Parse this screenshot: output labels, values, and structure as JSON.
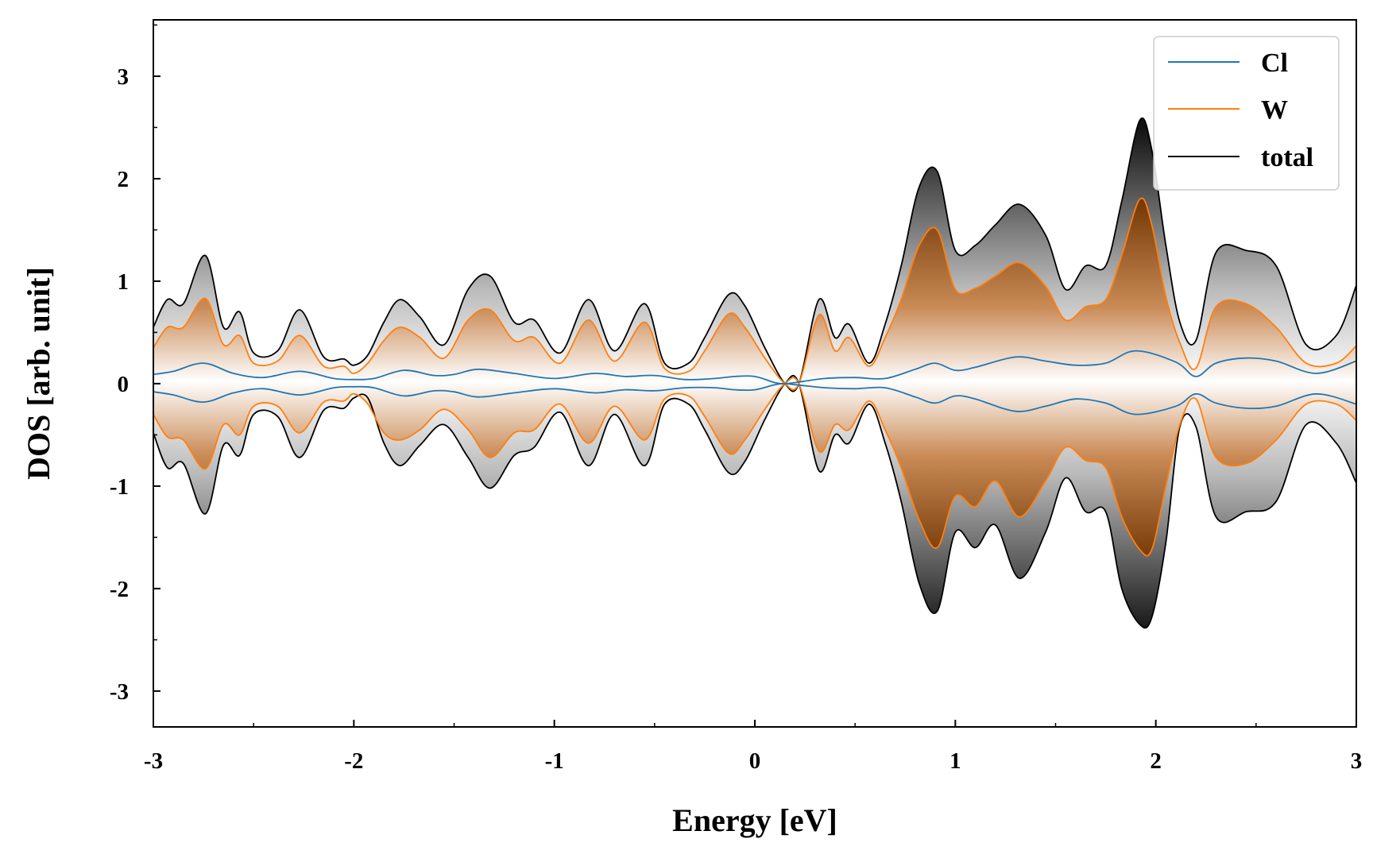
{
  "chart_data": {
    "type": "line",
    "title": "",
    "xlabel": "Energy [eV]",
    "ylabel": "DOS [arb. unit]",
    "xlim": [
      -3,
      3
    ],
    "ylim": [
      -3.35,
      3.55
    ],
    "xticks": [
      -3,
      -2,
      -1,
      0,
      1,
      2,
      3
    ],
    "yticks": [
      -3,
      -2,
      -1,
      0,
      1,
      2,
      3
    ],
    "xtick_labels": [
      "-3",
      "-2",
      "-1",
      "0",
      "1",
      "2",
      "3"
    ],
    "ytick_labels": [
      "-3",
      "-2",
      "-1",
      "0",
      "1",
      "2",
      "3"
    ],
    "grid": false,
    "legend_position": "top-right",
    "legend": [
      "Cl",
      "W",
      "total"
    ],
    "fill": "vertical gradient under the total and W curves, darkest at the largest magnitude",
    "series": [
      {
        "name": "Cl",
        "color": "#1f77b4",
        "x": [
          -3.0,
          -2.9,
          -2.75,
          -2.6,
          -2.45,
          -2.27,
          -2.1,
          -2.0,
          -1.9,
          -1.75,
          -1.6,
          -1.5,
          -1.38,
          -1.2,
          -1.0,
          -0.8,
          -0.65,
          -0.5,
          -0.35,
          -0.2,
          -0.1,
          0.0,
          0.1,
          0.15,
          0.2,
          0.35,
          0.5,
          0.65,
          0.8,
          0.9,
          1.0,
          1.1,
          1.3,
          1.45,
          1.6,
          1.75,
          1.9,
          2.1,
          2.2,
          2.3,
          2.45,
          2.6,
          2.8,
          3.0
        ],
        "upper": [
          0.09,
          0.12,
          0.2,
          0.1,
          0.06,
          0.12,
          0.05,
          0.04,
          0.05,
          0.13,
          0.08,
          0.09,
          0.14,
          0.1,
          0.05,
          0.1,
          0.07,
          0.08,
          0.04,
          0.05,
          0.07,
          0.07,
          0.01,
          0.0,
          0.01,
          0.05,
          0.06,
          0.05,
          0.14,
          0.2,
          0.13,
          0.16,
          0.26,
          0.22,
          0.18,
          0.2,
          0.32,
          0.21,
          0.07,
          0.2,
          0.25,
          0.22,
          0.1,
          0.22
        ],
        "lower": [
          -0.08,
          -0.11,
          -0.18,
          -0.09,
          -0.05,
          -0.11,
          -0.04,
          -0.03,
          -0.04,
          -0.12,
          -0.07,
          -0.08,
          -0.13,
          -0.09,
          -0.05,
          -0.09,
          -0.06,
          -0.07,
          -0.04,
          -0.04,
          -0.06,
          -0.06,
          -0.01,
          0.0,
          -0.01,
          -0.04,
          -0.05,
          -0.04,
          -0.13,
          -0.19,
          -0.12,
          -0.15,
          -0.27,
          -0.22,
          -0.15,
          -0.19,
          -0.3,
          -0.22,
          -0.1,
          -0.19,
          -0.24,
          -0.22,
          -0.1,
          -0.2
        ]
      },
      {
        "name": "W",
        "color": "#ff7f0e",
        "x": [
          -3.0,
          -2.93,
          -2.85,
          -2.74,
          -2.65,
          -2.57,
          -2.5,
          -2.38,
          -2.27,
          -2.15,
          -2.05,
          -2.0,
          -1.93,
          -1.85,
          -1.77,
          -1.67,
          -1.55,
          -1.43,
          -1.32,
          -1.2,
          -1.1,
          -0.97,
          -0.83,
          -0.7,
          -0.55,
          -0.45,
          -0.33,
          -0.25,
          -0.13,
          -0.05,
          0.05,
          0.15,
          0.22,
          0.32,
          0.4,
          0.47,
          0.57,
          0.65,
          0.73,
          0.82,
          0.91,
          1.0,
          1.1,
          1.2,
          1.32,
          1.45,
          1.55,
          1.65,
          1.75,
          1.83,
          1.92,
          1.98,
          2.05,
          2.12,
          2.2,
          2.3,
          2.45,
          2.6,
          2.75,
          2.9,
          3.0
        ],
        "upper": [
          0.35,
          0.55,
          0.55,
          0.83,
          0.38,
          0.47,
          0.2,
          0.22,
          0.47,
          0.17,
          0.17,
          0.1,
          0.2,
          0.42,
          0.55,
          0.45,
          0.25,
          0.62,
          0.72,
          0.42,
          0.45,
          0.2,
          0.62,
          0.22,
          0.6,
          0.15,
          0.12,
          0.32,
          0.68,
          0.55,
          0.25,
          0.0,
          0.0,
          0.67,
          0.32,
          0.45,
          0.17,
          0.45,
          0.82,
          1.35,
          1.5,
          0.92,
          0.93,
          1.05,
          1.18,
          0.95,
          0.62,
          0.75,
          0.82,
          1.25,
          1.8,
          1.55,
          0.85,
          0.4,
          0.15,
          0.75,
          0.78,
          0.55,
          0.2,
          0.2,
          0.37
        ],
        "lower": [
          -0.3,
          -0.52,
          -0.55,
          -0.83,
          -0.4,
          -0.5,
          -0.22,
          -0.22,
          -0.48,
          -0.18,
          -0.17,
          -0.1,
          -0.2,
          -0.48,
          -0.55,
          -0.45,
          -0.25,
          -0.45,
          -0.72,
          -0.48,
          -0.45,
          -0.2,
          -0.58,
          -0.22,
          -0.55,
          -0.15,
          -0.12,
          -0.32,
          -0.68,
          -0.55,
          -0.25,
          0.0,
          0.0,
          -0.66,
          -0.4,
          -0.45,
          -0.17,
          -0.45,
          -0.82,
          -1.33,
          -1.6,
          -1.1,
          -1.2,
          -0.95,
          -1.3,
          -0.95,
          -0.62,
          -0.75,
          -0.82,
          -1.3,
          -1.62,
          -1.62,
          -1.0,
          -0.4,
          -0.15,
          -0.72,
          -0.78,
          -0.55,
          -0.2,
          -0.2,
          -0.36
        ]
      },
      {
        "name": "total",
        "color": "#000000",
        "x": [
          -3.0,
          -2.93,
          -2.85,
          -2.74,
          -2.65,
          -2.57,
          -2.5,
          -2.38,
          -2.27,
          -2.15,
          -2.05,
          -2.0,
          -1.93,
          -1.85,
          -1.77,
          -1.67,
          -1.55,
          -1.43,
          -1.32,
          -1.2,
          -1.1,
          -0.97,
          -0.83,
          -0.7,
          -0.55,
          -0.45,
          -0.33,
          -0.25,
          -0.13,
          -0.05,
          0.05,
          0.15,
          0.22,
          0.32,
          0.4,
          0.47,
          0.57,
          0.65,
          0.73,
          0.82,
          0.91,
          1.0,
          1.1,
          1.2,
          1.32,
          1.45,
          1.55,
          1.65,
          1.75,
          1.83,
          1.92,
          1.98,
          2.05,
          2.12,
          2.2,
          2.3,
          2.45,
          2.6,
          2.75,
          2.9,
          3.0
        ],
        "upper": [
          0.55,
          0.82,
          0.78,
          1.25,
          0.55,
          0.7,
          0.3,
          0.32,
          0.72,
          0.26,
          0.24,
          0.18,
          0.28,
          0.6,
          0.82,
          0.65,
          0.38,
          0.92,
          1.05,
          0.6,
          0.62,
          0.3,
          0.82,
          0.32,
          0.78,
          0.2,
          0.2,
          0.45,
          0.87,
          0.76,
          0.35,
          0.0,
          0.0,
          0.82,
          0.45,
          0.58,
          0.2,
          0.58,
          1.15,
          1.92,
          2.07,
          1.3,
          1.35,
          1.55,
          1.75,
          1.45,
          0.92,
          1.15,
          1.15,
          1.78,
          2.57,
          2.28,
          1.35,
          0.6,
          0.42,
          1.28,
          1.3,
          1.15,
          0.38,
          0.47,
          0.96
        ],
        "lower": [
          -0.48,
          -0.82,
          -0.78,
          -1.27,
          -0.6,
          -0.7,
          -0.3,
          -0.32,
          -0.72,
          -0.26,
          -0.24,
          -0.14,
          -0.14,
          -0.58,
          -0.8,
          -0.6,
          -0.4,
          -0.72,
          -1.02,
          -0.7,
          -0.62,
          -0.28,
          -0.8,
          -0.3,
          -0.8,
          -0.2,
          -0.2,
          -0.45,
          -0.87,
          -0.76,
          -0.35,
          0.0,
          0.0,
          -0.85,
          -0.5,
          -0.58,
          -0.2,
          -0.58,
          -1.15,
          -1.95,
          -2.22,
          -1.45,
          -1.6,
          -1.38,
          -1.9,
          -1.45,
          -0.92,
          -1.25,
          -1.25,
          -2.0,
          -2.35,
          -2.28,
          -1.55,
          -0.42,
          -0.42,
          -1.3,
          -1.25,
          -1.15,
          -0.4,
          -0.58,
          -0.97
        ]
      }
    ]
  }
}
